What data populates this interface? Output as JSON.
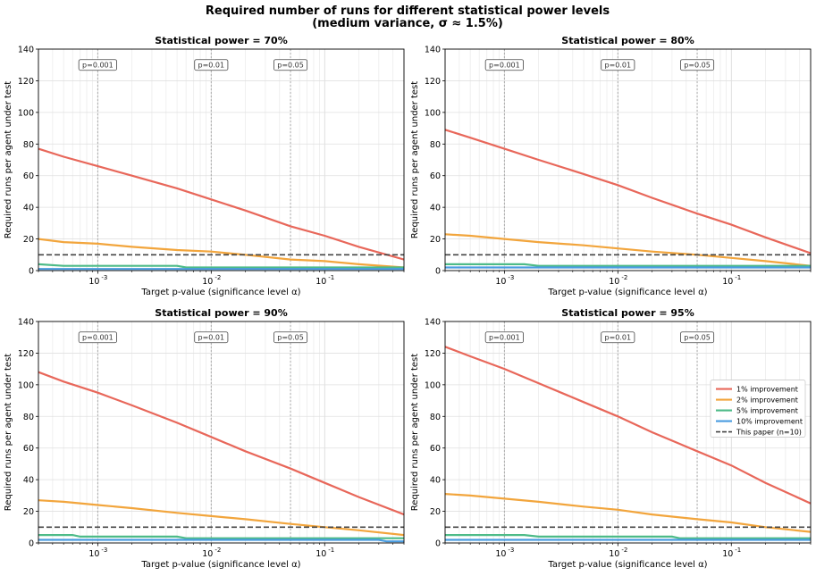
{
  "figure": {
    "title_line1": "Required number of runs for different statistical power levels",
    "title_line2": "(medium variance, σ ≈ 1.5%)"
  },
  "colors": {
    "1pct": "#e8675a",
    "2pct": "#f2a53c",
    "5pct": "#4dbb88",
    "10pct": "#4a9ce0",
    "paper": "#444444",
    "vline": "#aaaaaa"
  },
  "legend": [
    "1% improvement",
    "2% improvement",
    "5% improvement",
    "10% improvement",
    "This paper (n=10)"
  ],
  "annotations": [
    "p=0.001",
    "p=0.01",
    "p=0.05"
  ],
  "chart_data": [
    {
      "type": "line",
      "title": "Statistical power = 70%",
      "xlabel": "Target p-value (significance level α)",
      "ylabel": "Required runs per agent under test",
      "xscale": "log",
      "xlim": [
        0.0003,
        0.5
      ],
      "ylim": [
        0,
        140
      ],
      "yticks": [
        0,
        20,
        40,
        60,
        80,
        100,
        120,
        140
      ],
      "xtick_labels": [
        "10^-3",
        "10^-2",
        "10^-1"
      ],
      "grid": true,
      "reference_lines_x": [
        0.001,
        0.01,
        0.05
      ],
      "reference_line_y": 10,
      "series": [
        {
          "name": "1% improvement",
          "points": [
            [
              0.0003,
              77
            ],
            [
              0.0005,
              72
            ],
            [
              0.001,
              66
            ],
            [
              0.002,
              60
            ],
            [
              0.005,
              52
            ],
            [
              0.01,
              45
            ],
            [
              0.02,
              38
            ],
            [
              0.05,
              28
            ],
            [
              0.1,
              22
            ],
            [
              0.2,
              15
            ],
            [
              0.5,
              7
            ]
          ]
        },
        {
          "name": "2% improvement",
          "points": [
            [
              0.0003,
              20
            ],
            [
              0.0005,
              18
            ],
            [
              0.001,
              17
            ],
            [
              0.002,
              15
            ],
            [
              0.005,
              13
            ],
            [
              0.01,
              12
            ],
            [
              0.02,
              10
            ],
            [
              0.05,
              7
            ],
            [
              0.1,
              6
            ],
            [
              0.2,
              4
            ],
            [
              0.5,
              2
            ]
          ]
        },
        {
          "name": "5% improvement",
          "points": [
            [
              0.0003,
              4
            ],
            [
              0.0005,
              3
            ],
            [
              0.005,
              3
            ],
            [
              0.006,
              2
            ],
            [
              0.5,
              2
            ]
          ]
        },
        {
          "name": "10% improvement",
          "points": [
            [
              0.0003,
              1
            ],
            [
              0.5,
              1
            ]
          ]
        }
      ]
    },
    {
      "type": "line",
      "title": "Statistical power = 80%",
      "xlabel": "Target p-value (significance level α)",
      "ylabel": "Required runs per agent under test",
      "xscale": "log",
      "xlim": [
        0.0003,
        0.5
      ],
      "ylim": [
        0,
        140
      ],
      "yticks": [
        0,
        20,
        40,
        60,
        80,
        100,
        120,
        140
      ],
      "xtick_labels": [
        "10^-3",
        "10^-2",
        "10^-1"
      ],
      "grid": true,
      "reference_lines_x": [
        0.001,
        0.01,
        0.05
      ],
      "reference_line_y": 10,
      "series": [
        {
          "name": "1% improvement",
          "points": [
            [
              0.0003,
              89
            ],
            [
              0.0005,
              84
            ],
            [
              0.001,
              77
            ],
            [
              0.002,
              70
            ],
            [
              0.005,
              61
            ],
            [
              0.01,
              54
            ],
            [
              0.02,
              46
            ],
            [
              0.05,
              36
            ],
            [
              0.1,
              29
            ],
            [
              0.2,
              21
            ],
            [
              0.5,
              11
            ]
          ]
        },
        {
          "name": "2% improvement",
          "points": [
            [
              0.0003,
              23
            ],
            [
              0.0005,
              22
            ],
            [
              0.001,
              20
            ],
            [
              0.002,
              18
            ],
            [
              0.005,
              16
            ],
            [
              0.01,
              14
            ],
            [
              0.02,
              12
            ],
            [
              0.05,
              10
            ],
            [
              0.1,
              8
            ],
            [
              0.2,
              6
            ],
            [
              0.5,
              3
            ]
          ]
        },
        {
          "name": "5% improvement",
          "points": [
            [
              0.0003,
              4
            ],
            [
              0.0015,
              4
            ],
            [
              0.002,
              3
            ],
            [
              0.5,
              3
            ]
          ]
        },
        {
          "name": "10% improvement",
          "points": [
            [
              0.0003,
              2
            ],
            [
              0.5,
              2
            ]
          ]
        }
      ]
    },
    {
      "type": "line",
      "title": "Statistical power = 90%",
      "xlabel": "Target p-value (significance level α)",
      "ylabel": "Required runs per agent under test",
      "xscale": "log",
      "xlim": [
        0.0003,
        0.5
      ],
      "ylim": [
        0,
        140
      ],
      "yticks": [
        0,
        20,
        40,
        60,
        80,
        100,
        120,
        140
      ],
      "xtick_labels": [
        "10^-3",
        "10^-2",
        "10^-1"
      ],
      "grid": true,
      "reference_lines_x": [
        0.001,
        0.01,
        0.05
      ],
      "reference_line_y": 10,
      "series": [
        {
          "name": "1% improvement",
          "points": [
            [
              0.0003,
              108
            ],
            [
              0.0005,
              102
            ],
            [
              0.001,
              95
            ],
            [
              0.002,
              87
            ],
            [
              0.005,
              76
            ],
            [
              0.01,
              67
            ],
            [
              0.02,
              58
            ],
            [
              0.05,
              47
            ],
            [
              0.1,
              38
            ],
            [
              0.2,
              29
            ],
            [
              0.5,
              18
            ]
          ]
        },
        {
          "name": "2% improvement",
          "points": [
            [
              0.0003,
              27
            ],
            [
              0.0005,
              26
            ],
            [
              0.001,
              24
            ],
            [
              0.002,
              22
            ],
            [
              0.005,
              19
            ],
            [
              0.01,
              17
            ],
            [
              0.02,
              15
            ],
            [
              0.05,
              12
            ],
            [
              0.1,
              10
            ],
            [
              0.2,
              8
            ],
            [
              0.5,
              5
            ]
          ]
        },
        {
          "name": "5% improvement",
          "points": [
            [
              0.0003,
              5
            ],
            [
              0.0006,
              5
            ],
            [
              0.0007,
              4
            ],
            [
              0.005,
              4
            ],
            [
              0.006,
              3
            ],
            [
              0.5,
              3
            ]
          ]
        },
        {
          "name": "10% improvement",
          "points": [
            [
              0.0003,
              2
            ],
            [
              0.3,
              2
            ],
            [
              0.35,
              1
            ],
            [
              0.5,
              1
            ]
          ]
        }
      ]
    },
    {
      "type": "line",
      "title": "Statistical power = 95%",
      "xlabel": "Target p-value (significance level α)",
      "ylabel": "Required runs per agent under test",
      "xscale": "log",
      "xlim": [
        0.0003,
        0.5
      ],
      "ylim": [
        0,
        140
      ],
      "yticks": [
        0,
        20,
        40,
        60,
        80,
        100,
        120,
        140
      ],
      "xtick_labels": [
        "10^-3",
        "10^-2",
        "10^-1"
      ],
      "grid": true,
      "reference_lines_x": [
        0.001,
        0.01,
        0.05
      ],
      "reference_line_y": 10,
      "legend_position": "center-right",
      "series": [
        {
          "name": "1% improvement",
          "points": [
            [
              0.0003,
              124
            ],
            [
              0.0005,
              118
            ],
            [
              0.001,
              110
            ],
            [
              0.002,
              101
            ],
            [
              0.005,
              89
            ],
            [
              0.01,
              80
            ],
            [
              0.02,
              70
            ],
            [
              0.05,
              58
            ],
            [
              0.1,
              49
            ],
            [
              0.2,
              38
            ],
            [
              0.5,
              25
            ]
          ]
        },
        {
          "name": "2% improvement",
          "points": [
            [
              0.0003,
              31
            ],
            [
              0.0005,
              30
            ],
            [
              0.001,
              28
            ],
            [
              0.002,
              26
            ],
            [
              0.005,
              23
            ],
            [
              0.01,
              21
            ],
            [
              0.02,
              18
            ],
            [
              0.05,
              15
            ],
            [
              0.1,
              13
            ],
            [
              0.2,
              10
            ],
            [
              0.5,
              7
            ]
          ]
        },
        {
          "name": "5% improvement",
          "points": [
            [
              0.0003,
              5
            ],
            [
              0.0015,
              5
            ],
            [
              0.002,
              4
            ],
            [
              0.03,
              4
            ],
            [
              0.035,
              3
            ],
            [
              0.5,
              3
            ]
          ]
        },
        {
          "name": "10% improvement",
          "points": [
            [
              0.0003,
              2
            ],
            [
              0.5,
              2
            ]
          ]
        }
      ]
    }
  ]
}
